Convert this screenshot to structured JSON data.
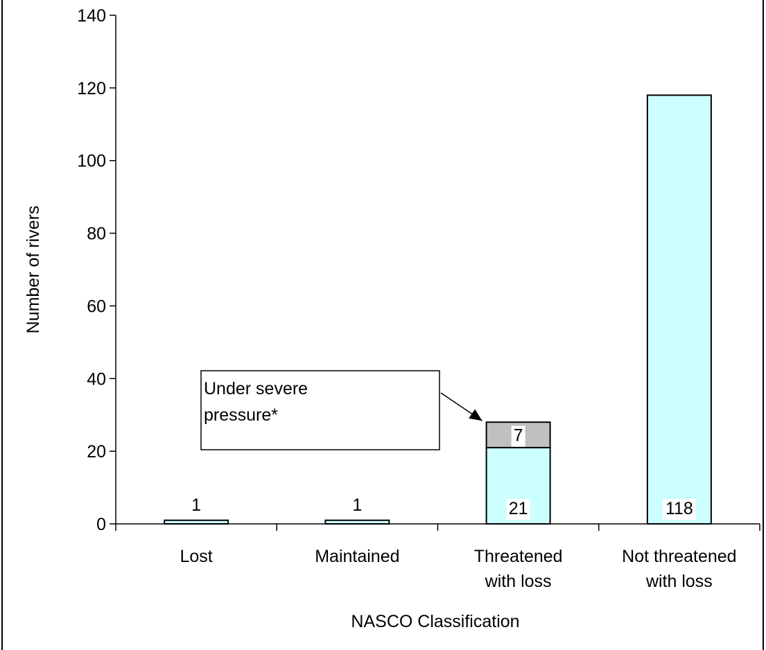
{
  "chart_data": {
    "type": "bar",
    "stacked": true,
    "categories": [
      [
        "Lost"
      ],
      [
        "Maintained"
      ],
      [
        "Threatened",
        "with loss"
      ],
      [
        "Not threatened",
        "with loss"
      ]
    ],
    "series": [
      {
        "values": [
          1,
          1,
          21,
          118
        ],
        "color": "#ccffff"
      },
      {
        "values": [
          0,
          0,
          7,
          0
        ],
        "color": "#c0c0c0"
      }
    ],
    "data_labels": [
      [
        "1",
        "1",
        "21",
        "118"
      ],
      [
        "",
        "",
        "7",
        ""
      ]
    ],
    "xlabel": "NASCO Classification",
    "ylabel": "Number of rivers",
    "ylim": [
      0,
      140
    ],
    "yticks": [
      0,
      20,
      40,
      60,
      80,
      100,
      120,
      140
    ],
    "grid": false,
    "legend": "none",
    "annotation": {
      "lines": [
        "Under severe",
        "pressure*"
      ],
      "category_index": 2,
      "series_index": 1
    },
    "colors": {
      "axis": "#000000",
      "bar_stroke": "#000000",
      "background": "#ffffff"
    }
  }
}
